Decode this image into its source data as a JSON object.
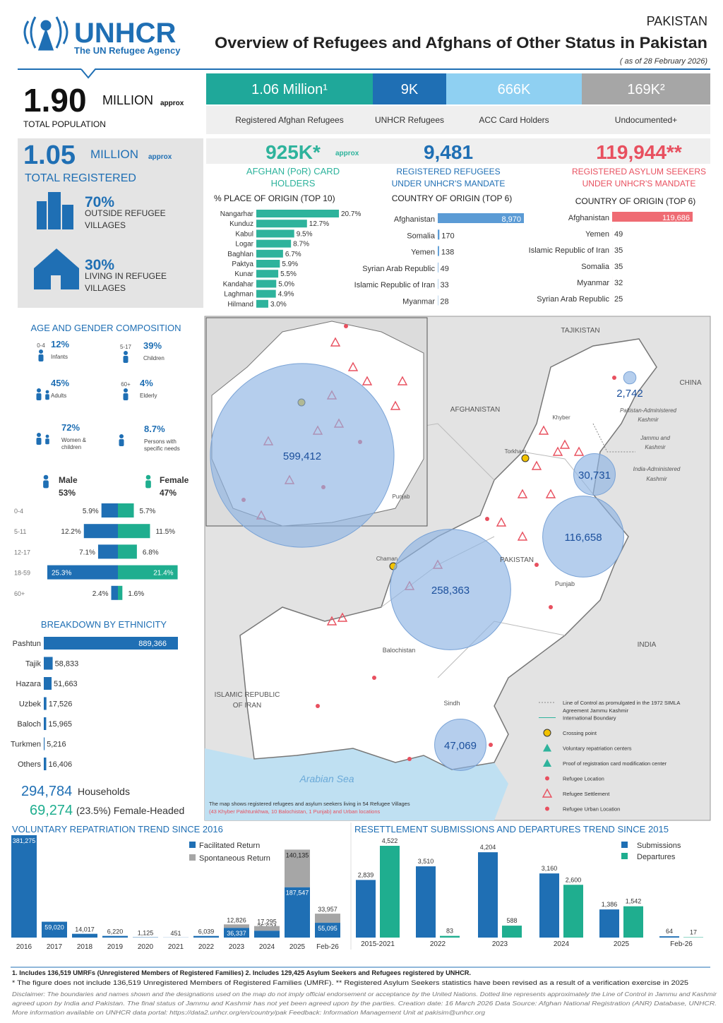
{
  "header": {
    "logo": "UNHCR",
    "tagline": "The UN Refugee Agency",
    "country": "PAKISTAN",
    "title": "Overview of Refugees and Afghans of Other Status in Pakistan",
    "date": "( as of 28 February 2026)"
  },
  "population": {
    "value": "1.90",
    "unit": "MILLION",
    "approx": "approx",
    "label": "TOTAL POPULATION",
    "segments": [
      {
        "value": "1.06 Million¹",
        "label": "Registered Afghan Refugees",
        "color": "#1fa89a"
      },
      {
        "value": "9K",
        "label": "UNHCR Refugees",
        "color": "#1f6fb4"
      },
      {
        "value": "666K",
        "label": "ACC Card Holders",
        "color": "#8fd0f2"
      },
      {
        "value": "169K²",
        "label": "Undocumented+",
        "color": "#a6a6a6"
      }
    ]
  },
  "registered": {
    "value": "1.05",
    "unit": "MILLION",
    "approx": "approx",
    "label": "TOTAL REGISTERED",
    "items": [
      {
        "value": "70%",
        "label": [
          "OUTSIDE REFUGEE",
          "VILLAGES"
        ]
      },
      {
        "value": "30%",
        "label": [
          "LIVING IN REFUGEE",
          "VILLAGES"
        ]
      }
    ]
  },
  "demographics": {
    "title": "AGE AND GENDER COMPOSITION",
    "items": [
      {
        "age": "0-4",
        "value": "12%",
        "label": [
          "Infants"
        ]
      },
      {
        "age": "5-17",
        "value": "39%",
        "label": [
          "Children"
        ]
      },
      {
        "value": "45%",
        "label": [
          "Adults"
        ]
      },
      {
        "age": "60+",
        "value": "4%",
        "label": [
          "Elderly"
        ]
      },
      {
        "value": "72%",
        "label": [
          "Women &",
          "children"
        ]
      },
      {
        "value": "8.7%",
        "label": [
          "Persons with",
          "specific needs"
        ]
      }
    ]
  },
  "households": {
    "value": "294,784",
    "label": "Households",
    "female_value": "69,274",
    "female_label": "(23.5%) Female-Headed"
  },
  "map": {
    "labels": [
      "TAJIKISTAN",
      "CHINA",
      "AFGHANISTAN",
      "PAKISTAN",
      "INDIA",
      "ISLAMIC REPUBLIC",
      "OF IRAN",
      "Arabian Sea",
      "Pakistan-Administered",
      "Kashmir",
      "Jammu and",
      "Kashmir",
      "India-Administered",
      "Kashmir",
      "Punjab",
      "Balochistan",
      "Sindh",
      "Khyber",
      "Torkham",
      "Chaman",
      "Punjab"
    ],
    "circles": {
      "values": [
        599412,
        258363,
        116658,
        47069,
        30731,
        2742
      ],
      "value_labels": [
        "599,412",
        "258,363",
        "116,658",
        "47,069",
        "30,731",
        "2,742"
      ],
      "color": "#8eb4e3"
    },
    "legend": [
      [
        "Line of Control as promulgated in the 1972 SIMLA",
        "Agreement Jammu Kashmir"
      ],
      [
        "International Boundary"
      ],
      [
        "Crossing point"
      ],
      [
        "Voluntary repatriation centers"
      ],
      [
        "Proof of registration card modification center"
      ],
      [
        "Refugee Location"
      ],
      [
        "Refugee Settlement"
      ],
      [
        "Refugee Urban Location"
      ]
    ],
    "note": [
      "The map shows registered refugees and asylum seekers living in 54 Refugee Villages",
      "(43 Khyber Pakhtunkhwa, 10 Balochistan, 1 Punjab) and Urban locations"
    ]
  },
  "footnotes": {
    "lines": [
      "1. Includes 136,519 UMRFs (Unregistered Members of Registered Families)  2. Includes 129,425 Asylum Seekers and Refugees registered by UNHCR.",
      "* The figure does not include 136,519 Unregistered Members of Registered Families (UMRF).  ** Registered Asylum Seekers statistics have been revised as a result of a verification exercise in 2025"
    ],
    "disclaimer": [
      "Disclaimer: The boundaries and names shown and the designations used on the map do not imply official endorsement or acceptance by the United Nations. Dotted line represents approximately the Line of Control in Jammu and Kashmir",
      "agreed upon by India and Pakistan. The final status of Jammu and Kashmir has not yet been agreed upon by the parties. Creation date: 16 March 2026 Data Source: Afghan National Registration (ANR) Database, UNHCR.",
      "More information available on UNHCR data portal: https://data2.unhcr.org/en/country/pak Feedback: Information Management Unit at pakisim@unhcr.org"
    ]
  },
  "chart_data": [
    {
      "type": "bar",
      "orientation": "horizontal",
      "headline": "925K*",
      "headline_note": "approx",
      "title": [
        "AFGHAN (PoR) CARD",
        "HOLDERS"
      ],
      "subtitle": "% PLACE OF ORIGIN (TOP 10)",
      "categories": [
        "Nangarhar",
        "Kunduz",
        "Kabul",
        "Logar",
        "Baghlan",
        "Paktya",
        "Kunar",
        "Kandahar",
        "Laghman",
        "Hilmand"
      ],
      "values": [
        20.7,
        12.7,
        9.5,
        8.7,
        6.7,
        5.9,
        5.5,
        5.0,
        4.9,
        3.0
      ],
      "value_labels": [
        "20.7%",
        "12.7%",
        "9.5%",
        "8.7%",
        "6.7%",
        "5.9%",
        "5.5%",
        "5.0%",
        "4.9%",
        "3.0%"
      ],
      "color": "#2eb39c",
      "headline_color": "#2eb39c"
    },
    {
      "type": "bar",
      "orientation": "horizontal",
      "headline": "9,481",
      "title": [
        "REGISTERED REFUGEES",
        "UNDER UNHCR'S MANDATE"
      ],
      "subtitle": "COUNTRY OF ORIGIN (TOP 6)",
      "categories": [
        "Afghanistan",
        "Somalia",
        "Yemen",
        "Syrian Arab Republic",
        "Islamic Republic of Iran",
        "Myanmar"
      ],
      "values": [
        8970,
        170,
        138,
        49,
        33,
        28
      ],
      "value_labels": [
        "8,970",
        "170",
        "138",
        "49",
        "33",
        "28"
      ],
      "color": "#5b9bd5",
      "headline_color": "#1f6fb4"
    },
    {
      "type": "bar",
      "orientation": "horizontal",
      "headline": "119,944**",
      "title": [
        "REGISTERED ASYLUM SEEKERS",
        "UNDER UNHCR'S MANDATE"
      ],
      "subtitle": "COUNTRY OF ORIGIN (TOP 6)",
      "categories": [
        "Afghanistan",
        "Yemen",
        "Islamic Republic of Iran",
        "Somalia",
        "Myanmar",
        "Syrian Arab Republic"
      ],
      "values": [
        119686,
        49,
        35,
        35,
        32,
        25
      ],
      "value_labels": [
        "119,686",
        "49",
        "35",
        "35",
        "32",
        "25"
      ],
      "color": "#ef6b73",
      "headline_color": "#e8505f"
    },
    {
      "type": "pyramid",
      "categories": [
        "0-4",
        "5-11",
        "12-17",
        "18-59",
        "60+"
      ],
      "series": [
        {
          "name": "Male",
          "share": "53%",
          "color": "#1f6fb4",
          "values": [
            5.9,
            12.2,
            7.1,
            25.3,
            2.4
          ],
          "value_labels": [
            "5.9%",
            "12.2%",
            "7.1%",
            "25.3%",
            "2.4%"
          ]
        },
        {
          "name": "Female",
          "share": "47%",
          "color": "#1fae8f",
          "values": [
            5.7,
            11.5,
            6.8,
            21.4,
            1.6
          ],
          "value_labels": [
            "5.7%",
            "11.5%",
            "6.8%",
            "21.4%",
            "1.6%"
          ]
        }
      ]
    },
    {
      "type": "bar",
      "orientation": "horizontal",
      "title": "BREAKDOWN BY ETHNICITY",
      "categories": [
        "Pashtun",
        "Tajik",
        "Hazara",
        "Uzbek",
        "Baloch",
        "Turkmen",
        "Others"
      ],
      "values": [
        889366,
        58833,
        51663,
        17526,
        15965,
        5216,
        16406
      ],
      "value_labels": [
        "889,366",
        "58,833",
        "51,663",
        "17,526",
        "15,965",
        "5,216",
        "16,406"
      ],
      "color": "#1f6fb4"
    },
    {
      "type": "stacked_bar",
      "title": "VOLUNTARY REPATRIATION TREND SINCE 2016",
      "categories": [
        "2016",
        "2017",
        "2018",
        "2019",
        "2020",
        "2021",
        "2022",
        "2023",
        "2024",
        "2025",
        "Feb-26"
      ],
      "series": [
        {
          "name": "Facilitated Return",
          "color": "#1f6fb4",
          "values": [
            381275,
            59020,
            14017,
            6220,
            1125,
            451,
            6039,
            36337,
            25634,
            187547,
            55095
          ],
          "value_labels": [
            "381,275",
            "59,020",
            "14,017",
            "6,220",
            "1,125",
            "451",
            "6,039",
            "36,337",
            "25,634",
            "187,547",
            "55,095"
          ]
        },
        {
          "name": "Spontaneous Return",
          "color": "#a6a6a6",
          "values": [
            null,
            null,
            null,
            null,
            null,
            null,
            null,
            12826,
            17295,
            140135,
            33957
          ],
          "value_labels": [
            null,
            null,
            null,
            null,
            null,
            null,
            null,
            "12,826",
            "17,295",
            "140,135",
            "33,957"
          ]
        }
      ]
    },
    {
      "type": "grouped_bar",
      "title": "RESETTLEMENT SUBMISSIONS AND DEPARTURES TREND SINCE 2015",
      "categories": [
        "2015-2021",
        "2022",
        "2023",
        "2024",
        "2025",
        "Feb-26"
      ],
      "series": [
        {
          "name": "Submissions",
          "color": "#1f6fb4",
          "values": [
            2839,
            3510,
            4204,
            3160,
            1386,
            64
          ],
          "value_labels": [
            "2,839",
            "3,510",
            "4,204",
            "3,160",
            "1,386",
            "64"
          ]
        },
        {
          "name": "Departures",
          "color": "#1fae8f",
          "values": [
            4522,
            83,
            588,
            2600,
            1542,
            17
          ],
          "value_labels": [
            "4,522",
            "83",
            "588",
            "2,600",
            "1,542",
            "17"
          ]
        }
      ]
    }
  ]
}
